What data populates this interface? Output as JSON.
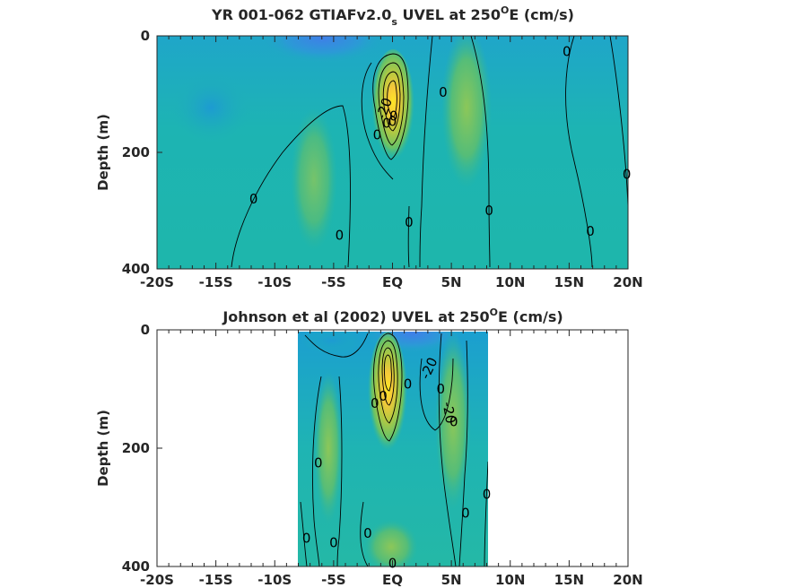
{
  "chart_data": [
    {
      "type": "heatmap",
      "title": "YR 001-062 GTIAFv2.0",
      "title_sub": "s",
      "title_rest": " UVEL at 250",
      "title_sup": "O",
      "title_end": "E (cm/s)",
      "ylabel": "Depth (m)",
      "xlim": [
        -20,
        20
      ],
      "ylim": [
        0,
        400
      ],
      "y_reversed": true,
      "x_data_range": [
        -20,
        20
      ],
      "xticks": [
        -20,
        -15,
        -10,
        -5,
        0,
        5,
        10,
        15,
        20
      ],
      "xtick_labels": [
        "-20S",
        "-15S",
        "-10S",
        "-5S",
        "EQ",
        "5N",
        "10N",
        "15N",
        "20N"
      ],
      "yticks": [
        0,
        200,
        400
      ],
      "ytick_labels": [
        "0",
        "200",
        "400"
      ],
      "field_features": [
        {
          "kind": "core",
          "x": 0.2,
          "y": 110,
          "value": 100
        },
        {
          "kind": "westward",
          "x": -2,
          "y": 10,
          "value": -20
        },
        {
          "kind": "westward",
          "x": -14,
          "y": 120,
          "value": -5
        },
        {
          "kind": "eastward",
          "x": 6,
          "y": 80,
          "value": 15
        },
        {
          "kind": "eastward",
          "x": -4,
          "y": 220,
          "value": 10
        }
      ],
      "contour_labels": [
        {
          "text": "0",
          "x": -11.8,
          "y": 280
        },
        {
          "text": "0",
          "x": -4.5,
          "y": 342
        },
        {
          "text": "0",
          "x": -1.3,
          "y": 170
        },
        {
          "text": "0",
          "x": 1.4,
          "y": 320
        },
        {
          "text": "0",
          "x": 4.3,
          "y": 97
        },
        {
          "text": "0",
          "x": 8.2,
          "y": 300
        },
        {
          "text": "0",
          "x": 14.8,
          "y": 27
        },
        {
          "text": "0",
          "x": 16.8,
          "y": 335
        },
        {
          "text": "0",
          "x": 19.9,
          "y": 238
        },
        {
          "text": "0",
          "x": -0.5,
          "y": 150
        },
        {
          "text": "-20",
          "x": -0.7,
          "y": 125,
          "rot": -70
        },
        {
          "text": "0",
          "x": 0.1,
          "y": 138
        },
        {
          "text": "0",
          "x": 0.0,
          "y": 147
        }
      ]
    },
    {
      "type": "heatmap",
      "title": "Johnson et al (2002) UVEL at 250",
      "title_sup": "O",
      "title_end": "E (cm/s)",
      "ylabel": "Depth (m)",
      "xlim": [
        -20,
        20
      ],
      "ylim": [
        0,
        400
      ],
      "y_reversed": true,
      "x_data_range": [
        -8,
        8.3
      ],
      "xticks": [
        -20,
        -15,
        -10,
        -5,
        0,
        5,
        10,
        15,
        20
      ],
      "xtick_labels": [
        "-20S",
        "-15S",
        "-10S",
        "-5S",
        "EQ",
        "5N",
        "10N",
        "15N",
        "20N"
      ],
      "yticks": [
        0,
        200,
        400
      ],
      "ytick_labels": [
        "0",
        "200",
        "400"
      ],
      "field_features": [
        {
          "kind": "core",
          "x": -0.2,
          "y": 75,
          "value": 100
        },
        {
          "kind": "westward",
          "x": 1.2,
          "y": 10,
          "value": -25
        },
        {
          "kind": "eastward",
          "x": -4.2,
          "y": 190,
          "value": 15
        },
        {
          "kind": "eastward",
          "x": 5.3,
          "y": 130,
          "value": 15
        },
        {
          "kind": "eastward",
          "x": 0,
          "y": 370,
          "value": 10
        }
      ],
      "contour_labels": [
        {
          "text": "-20",
          "x": 3.1,
          "y": 65,
          "rot": -65
        },
        {
          "text": "-20",
          "x": 4.8,
          "y": 140,
          "rot": 80
        },
        {
          "text": "0",
          "x": -1.5,
          "y": 124
        },
        {
          "text": "0",
          "x": -0.8,
          "y": 112
        },
        {
          "text": "0",
          "x": 1.3,
          "y": 92
        },
        {
          "text": "0",
          "x": 4.1,
          "y": 100
        },
        {
          "text": "0",
          "x": 5.2,
          "y": 155
        },
        {
          "text": "0",
          "x": -6.3,
          "y": 225
        },
        {
          "text": "0",
          "x": 8.0,
          "y": 278
        },
        {
          "text": "0",
          "x": 6.2,
          "y": 310
        },
        {
          "text": "0",
          "x": -7.3,
          "y": 352
        },
        {
          "text": "0",
          "x": -5.0,
          "y": 360
        },
        {
          "text": "0",
          "x": -2.1,
          "y": 344
        },
        {
          "text": "0",
          "x": 0.0,
          "y": 395
        }
      ]
    }
  ]
}
